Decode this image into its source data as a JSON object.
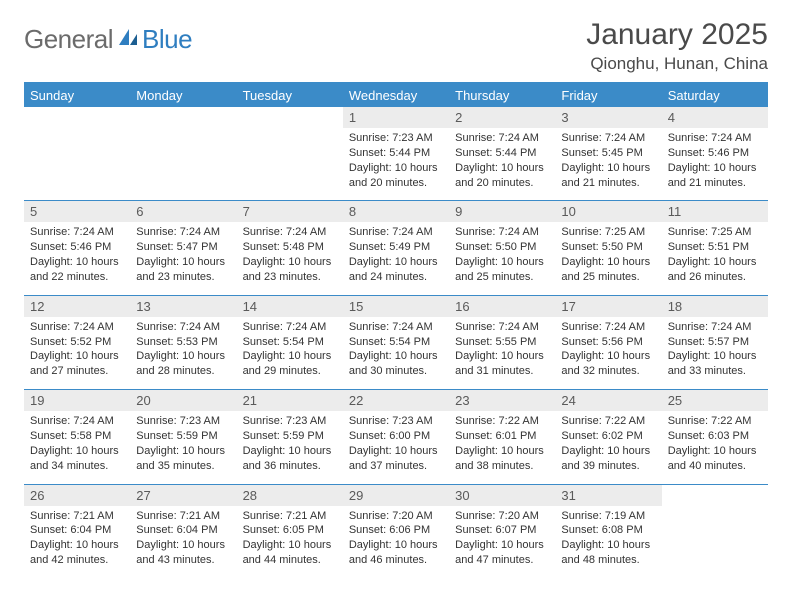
{
  "logo": {
    "part1": "General",
    "part2": "Blue"
  },
  "title": "January 2025",
  "location": "Qionghu, Hunan, China",
  "colors": {
    "header_bg": "#3b8bc8",
    "header_text": "#ffffff",
    "daynum_bg": "#ececec",
    "logo_gray": "#6b6b6b",
    "logo_blue": "#2f7ec0"
  },
  "days_of_week": [
    "Sunday",
    "Monday",
    "Tuesday",
    "Wednesday",
    "Thursday",
    "Friday",
    "Saturday"
  ],
  "weeks": [
    {
      "cells": [
        {
          "num": "",
          "sunrise": "",
          "sunset": "",
          "daylight": ""
        },
        {
          "num": "",
          "sunrise": "",
          "sunset": "",
          "daylight": ""
        },
        {
          "num": "",
          "sunrise": "",
          "sunset": "",
          "daylight": ""
        },
        {
          "num": "1",
          "sunrise": "Sunrise: 7:23 AM",
          "sunset": "Sunset: 5:44 PM",
          "daylight": "Daylight: 10 hours and 20 minutes."
        },
        {
          "num": "2",
          "sunrise": "Sunrise: 7:24 AM",
          "sunset": "Sunset: 5:44 PM",
          "daylight": "Daylight: 10 hours and 20 minutes."
        },
        {
          "num": "3",
          "sunrise": "Sunrise: 7:24 AM",
          "sunset": "Sunset: 5:45 PM",
          "daylight": "Daylight: 10 hours and 21 minutes."
        },
        {
          "num": "4",
          "sunrise": "Sunrise: 7:24 AM",
          "sunset": "Sunset: 5:46 PM",
          "daylight": "Daylight: 10 hours and 21 minutes."
        }
      ]
    },
    {
      "cells": [
        {
          "num": "5",
          "sunrise": "Sunrise: 7:24 AM",
          "sunset": "Sunset: 5:46 PM",
          "daylight": "Daylight: 10 hours and 22 minutes."
        },
        {
          "num": "6",
          "sunrise": "Sunrise: 7:24 AM",
          "sunset": "Sunset: 5:47 PM",
          "daylight": "Daylight: 10 hours and 23 minutes."
        },
        {
          "num": "7",
          "sunrise": "Sunrise: 7:24 AM",
          "sunset": "Sunset: 5:48 PM",
          "daylight": "Daylight: 10 hours and 23 minutes."
        },
        {
          "num": "8",
          "sunrise": "Sunrise: 7:24 AM",
          "sunset": "Sunset: 5:49 PM",
          "daylight": "Daylight: 10 hours and 24 minutes."
        },
        {
          "num": "9",
          "sunrise": "Sunrise: 7:24 AM",
          "sunset": "Sunset: 5:50 PM",
          "daylight": "Daylight: 10 hours and 25 minutes."
        },
        {
          "num": "10",
          "sunrise": "Sunrise: 7:25 AM",
          "sunset": "Sunset: 5:50 PM",
          "daylight": "Daylight: 10 hours and 25 minutes."
        },
        {
          "num": "11",
          "sunrise": "Sunrise: 7:25 AM",
          "sunset": "Sunset: 5:51 PM",
          "daylight": "Daylight: 10 hours and 26 minutes."
        }
      ]
    },
    {
      "cells": [
        {
          "num": "12",
          "sunrise": "Sunrise: 7:24 AM",
          "sunset": "Sunset: 5:52 PM",
          "daylight": "Daylight: 10 hours and 27 minutes."
        },
        {
          "num": "13",
          "sunrise": "Sunrise: 7:24 AM",
          "sunset": "Sunset: 5:53 PM",
          "daylight": "Daylight: 10 hours and 28 minutes."
        },
        {
          "num": "14",
          "sunrise": "Sunrise: 7:24 AM",
          "sunset": "Sunset: 5:54 PM",
          "daylight": "Daylight: 10 hours and 29 minutes."
        },
        {
          "num": "15",
          "sunrise": "Sunrise: 7:24 AM",
          "sunset": "Sunset: 5:54 PM",
          "daylight": "Daylight: 10 hours and 30 minutes."
        },
        {
          "num": "16",
          "sunrise": "Sunrise: 7:24 AM",
          "sunset": "Sunset: 5:55 PM",
          "daylight": "Daylight: 10 hours and 31 minutes."
        },
        {
          "num": "17",
          "sunrise": "Sunrise: 7:24 AM",
          "sunset": "Sunset: 5:56 PM",
          "daylight": "Daylight: 10 hours and 32 minutes."
        },
        {
          "num": "18",
          "sunrise": "Sunrise: 7:24 AM",
          "sunset": "Sunset: 5:57 PM",
          "daylight": "Daylight: 10 hours and 33 minutes."
        }
      ]
    },
    {
      "cells": [
        {
          "num": "19",
          "sunrise": "Sunrise: 7:24 AM",
          "sunset": "Sunset: 5:58 PM",
          "daylight": "Daylight: 10 hours and 34 minutes."
        },
        {
          "num": "20",
          "sunrise": "Sunrise: 7:23 AM",
          "sunset": "Sunset: 5:59 PM",
          "daylight": "Daylight: 10 hours and 35 minutes."
        },
        {
          "num": "21",
          "sunrise": "Sunrise: 7:23 AM",
          "sunset": "Sunset: 5:59 PM",
          "daylight": "Daylight: 10 hours and 36 minutes."
        },
        {
          "num": "22",
          "sunrise": "Sunrise: 7:23 AM",
          "sunset": "Sunset: 6:00 PM",
          "daylight": "Daylight: 10 hours and 37 minutes."
        },
        {
          "num": "23",
          "sunrise": "Sunrise: 7:22 AM",
          "sunset": "Sunset: 6:01 PM",
          "daylight": "Daylight: 10 hours and 38 minutes."
        },
        {
          "num": "24",
          "sunrise": "Sunrise: 7:22 AM",
          "sunset": "Sunset: 6:02 PM",
          "daylight": "Daylight: 10 hours and 39 minutes."
        },
        {
          "num": "25",
          "sunrise": "Sunrise: 7:22 AM",
          "sunset": "Sunset: 6:03 PM",
          "daylight": "Daylight: 10 hours and 40 minutes."
        }
      ]
    },
    {
      "cells": [
        {
          "num": "26",
          "sunrise": "Sunrise: 7:21 AM",
          "sunset": "Sunset: 6:04 PM",
          "daylight": "Daylight: 10 hours and 42 minutes."
        },
        {
          "num": "27",
          "sunrise": "Sunrise: 7:21 AM",
          "sunset": "Sunset: 6:04 PM",
          "daylight": "Daylight: 10 hours and 43 minutes."
        },
        {
          "num": "28",
          "sunrise": "Sunrise: 7:21 AM",
          "sunset": "Sunset: 6:05 PM",
          "daylight": "Daylight: 10 hours and 44 minutes."
        },
        {
          "num": "29",
          "sunrise": "Sunrise: 7:20 AM",
          "sunset": "Sunset: 6:06 PM",
          "daylight": "Daylight: 10 hours and 46 minutes."
        },
        {
          "num": "30",
          "sunrise": "Sunrise: 7:20 AM",
          "sunset": "Sunset: 6:07 PM",
          "daylight": "Daylight: 10 hours and 47 minutes."
        },
        {
          "num": "31",
          "sunrise": "Sunrise: 7:19 AM",
          "sunset": "Sunset: 6:08 PM",
          "daylight": "Daylight: 10 hours and 48 minutes."
        },
        {
          "num": "",
          "sunrise": "",
          "sunset": "",
          "daylight": ""
        }
      ]
    }
  ]
}
